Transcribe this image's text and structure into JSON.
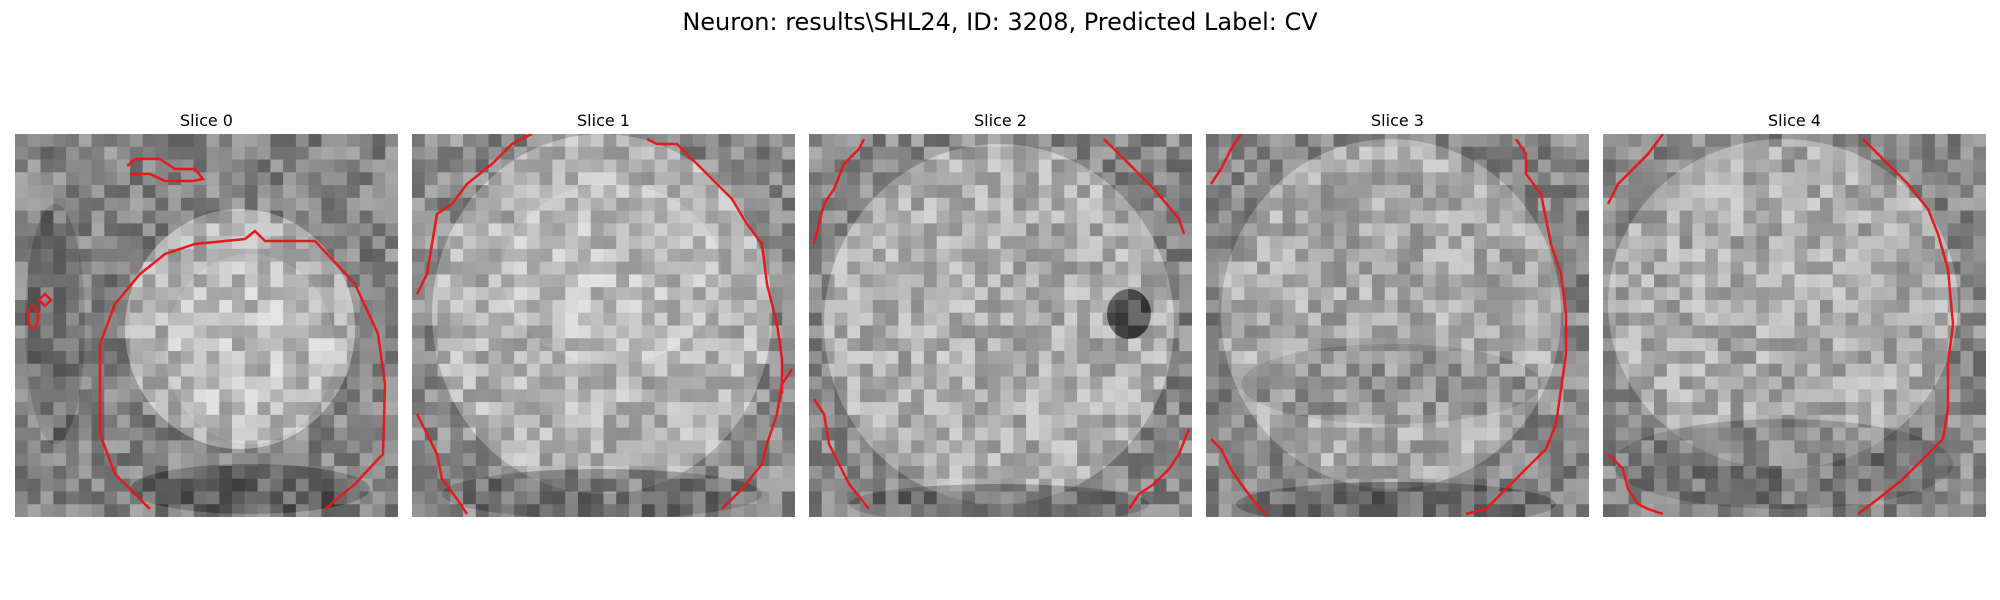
{
  "figure": {
    "title": "Neuron: results\\SHL24, ID: 3208, Predicted Label: CV",
    "slices": [
      {
        "label": "Slice 0"
      },
      {
        "label": "Slice 1"
      },
      {
        "label": "Slice 2"
      },
      {
        "label": "Slice 3"
      },
      {
        "label": "Slice 4"
      }
    ],
    "contour_color": "#e41a1c",
    "colormap": "gray"
  }
}
